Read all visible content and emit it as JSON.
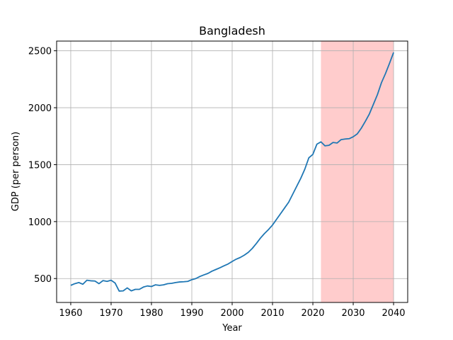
{
  "chart_data": {
    "type": "line",
    "title": "Bangladesh",
    "xlabel": "Year",
    "ylabel": "GDP (per person)",
    "xlim": [
      1956.5,
      2043.5
    ],
    "ylim": [
      290,
      2585
    ],
    "xticks": [
      1960,
      1970,
      1980,
      1990,
      2000,
      2010,
      2020,
      2030,
      2040
    ],
    "yticks": [
      500,
      1000,
      1500,
      2000,
      2500
    ],
    "grid": true,
    "line_color": "#1f77b4",
    "highlight": {
      "x_start": 2022,
      "x_end": 2040,
      "color": "#ffcccc"
    },
    "series": [
      {
        "x": [
          1960,
          1961,
          1962,
          1963,
          1964,
          1965,
          1966,
          1967,
          1968,
          1969,
          1970,
          1971,
          1972,
          1973,
          1974,
          1975,
          1976,
          1977,
          1978,
          1979,
          1980,
          1981,
          1982,
          1983,
          1984,
          1985,
          1986,
          1987,
          1988,
          1989,
          1990,
          1991,
          1992,
          1993,
          1994,
          1995,
          1996,
          1997,
          1998,
          1999,
          2000,
          2001,
          2002,
          2003,
          2004,
          2005,
          2006,
          2007,
          2008,
          2009,
          2010,
          2011,
          2012,
          2013,
          2014,
          2015,
          2016,
          2017,
          2018,
          2019,
          2020,
          2021,
          2022,
          2023,
          2024,
          2025,
          2026,
          2027,
          2028,
          2029,
          2030,
          2031,
          2032,
          2033,
          2034,
          2035,
          2036,
          2037,
          2038,
          2039,
          2040
        ],
        "y": [
          440,
          455,
          465,
          450,
          485,
          480,
          478,
          455,
          482,
          475,
          485,
          460,
          390,
          392,
          418,
          392,
          405,
          405,
          425,
          435,
          430,
          445,
          440,
          445,
          455,
          458,
          465,
          470,
          472,
          475,
          490,
          500,
          518,
          532,
          545,
          565,
          580,
          595,
          612,
          628,
          650,
          670,
          685,
          705,
          730,
          765,
          808,
          855,
          895,
          930,
          970,
          1020,
          1070,
          1120,
          1170,
          1240,
          1310,
          1380,
          1460,
          1560,
          1590,
          1680,
          1700,
          1665,
          1670,
          1695,
          1690,
          1720,
          1725,
          1728,
          1745,
          1770,
          1820,
          1880,
          1945,
          2030,
          2115,
          2220,
          2300,
          2390,
          2485
        ]
      }
    ]
  }
}
